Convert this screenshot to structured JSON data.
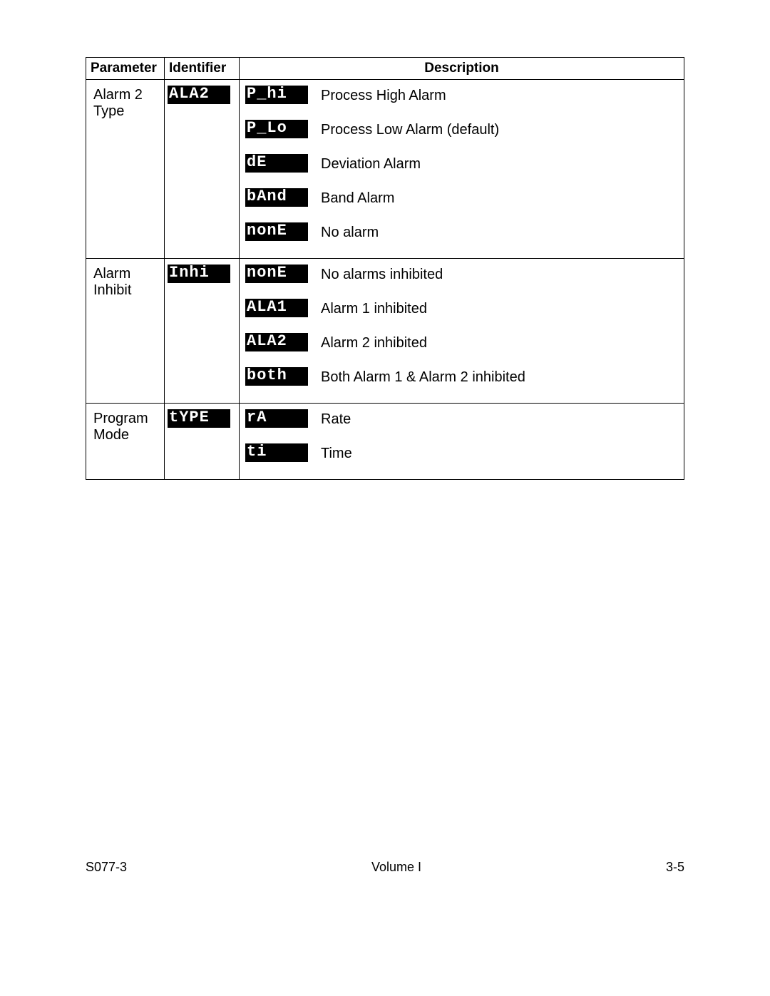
{
  "headers": {
    "parameter": "Parameter",
    "identifier": "Identifier",
    "description": "Description"
  },
  "rows": [
    {
      "parameter": "Alarm 2 Type",
      "identifier_display": "ALA2",
      "options": [
        {
          "display": "P_hi",
          "text": "Process High Alarm"
        },
        {
          "display": "P_Lo",
          "text": "Process Low Alarm (default)"
        },
        {
          "display": "dE  ",
          "text": "Deviation Alarm"
        },
        {
          "display": "bAnd",
          "text": "Band Alarm"
        },
        {
          "display": "nonE",
          "text": "No alarm"
        }
      ]
    },
    {
      "parameter": "Alarm Inhibit",
      "identifier_display": "Inhi",
      "options": [
        {
          "display": "nonE",
          "text": "No alarms inhibited"
        },
        {
          "display": "ALA1",
          "text": "Alarm 1 inhibited"
        },
        {
          "display": "ALA2",
          "text": "Alarm 2 inhibited"
        },
        {
          "display": "both",
          "text": "Both Alarm 1 & Alarm 2 inhibited"
        }
      ]
    },
    {
      "parameter": "Program Mode",
      "identifier_display": "tYPE",
      "options": [
        {
          "display": "rA  ",
          "text": "Rate"
        },
        {
          "display": "ti  ",
          "text": "Time"
        }
      ]
    }
  ],
  "footer": {
    "left": "S077-3",
    "center": "Volume I",
    "right": "3-5"
  }
}
